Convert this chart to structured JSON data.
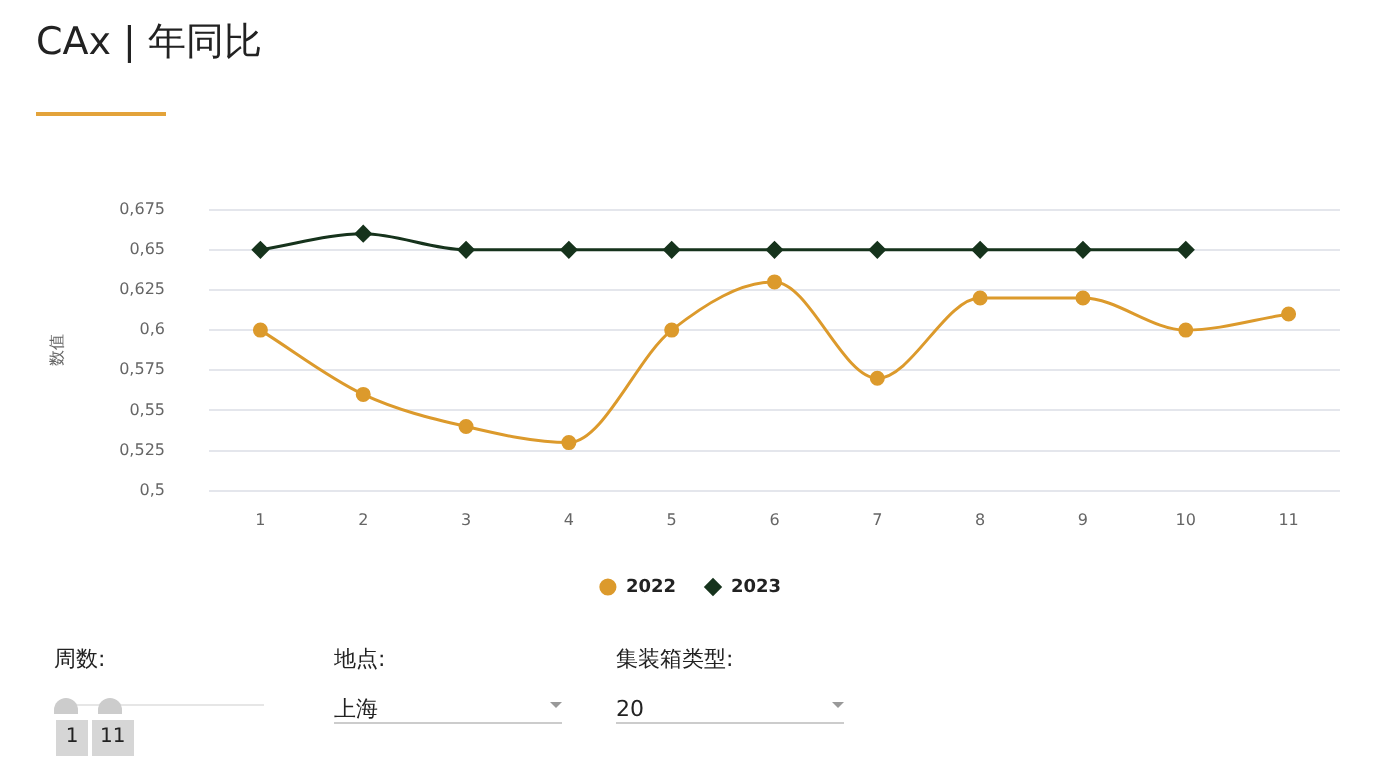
{
  "chart_data": {
    "type": "line",
    "title": "CAx | 年同比",
    "ylabel": "数值",
    "categories": [
      "1",
      "2",
      "3",
      "4",
      "5",
      "6",
      "7",
      "8",
      "9",
      "10",
      "11"
    ],
    "series": [
      {
        "name": "2022",
        "color": "#dc9a2c",
        "marker": "circle",
        "values": [
          0.6,
          0.56,
          0.54,
          0.53,
          0.6,
          0.63,
          0.57,
          0.62,
          0.62,
          0.6,
          0.61
        ]
      },
      {
        "name": "2023",
        "color": "#16331c",
        "marker": "diamond",
        "values": [
          0.65,
          0.66,
          0.65,
          0.65,
          0.65,
          0.65,
          0.65,
          0.65,
          0.65,
          0.65,
          null
        ]
      }
    ],
    "ylim": [
      0.5,
      0.675
    ],
    "yticks": [
      {
        "value": 0.5,
        "label": "0,5"
      },
      {
        "value": 0.525,
        "label": "0,525"
      },
      {
        "value": 0.55,
        "label": "0,55"
      },
      {
        "value": 0.575,
        "label": "0,575"
      },
      {
        "value": 0.6,
        "label": "0,6"
      },
      {
        "value": 0.625,
        "label": "0,625"
      },
      {
        "value": 0.65,
        "label": "0,65"
      },
      {
        "value": 0.675,
        "label": "0,675"
      }
    ],
    "grid": "y",
    "legend": "bottom",
    "annotations": [
      "周数:",
      "1",
      "11",
      "地点:",
      "上海",
      "集装箱类型:",
      "20"
    ]
  }
}
